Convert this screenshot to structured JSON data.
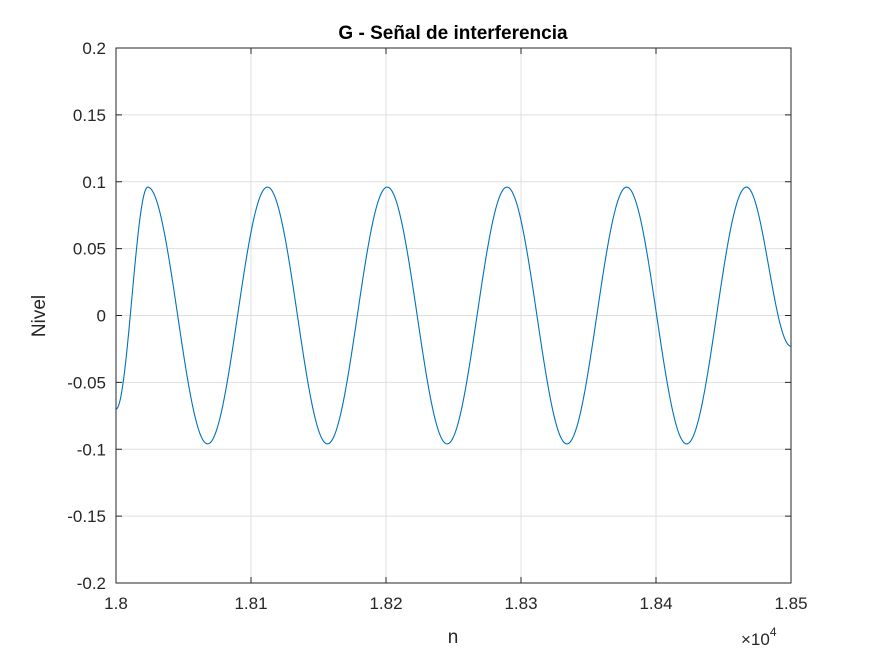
{
  "chart_data": {
    "type": "line",
    "title": "G - Señal de interferencia",
    "xlabel": "n",
    "ylabel": "Nivel",
    "xlim": [
      18000,
      18500
    ],
    "ylim": [
      -0.2,
      0.2
    ],
    "grid": true,
    "x_ticks": [
      18000,
      18100,
      18200,
      18300,
      18400,
      18500
    ],
    "x_tick_labels": [
      "1.8",
      "1.81",
      "1.82",
      "1.83",
      "1.84",
      "1.85"
    ],
    "x_exponent_base": "×10",
    "x_exponent_power": "4",
    "y_ticks": [
      -0.2,
      -0.15,
      -0.1,
      -0.05,
      0,
      0.05,
      0.1,
      0.15,
      0.2
    ],
    "y_tick_labels": [
      "-0.2",
      "-0.15",
      "-0.1",
      "-0.05",
      "0",
      "0.05",
      "0.1",
      "0.15",
      "0.2"
    ],
    "series": [
      {
        "amplitude": 0.096,
        "period": 88.7,
        "peaks_at": [
          18023.5,
          18112.2,
          18200.9,
          18289.6,
          18378.3,
          18467
        ],
        "troughs_at": [
          18067.9,
          18156.6,
          18245.3,
          18334,
          18422.7
        ],
        "x_start": 18000,
        "x_end": 18500,
        "y_start": -0.07,
        "y_end": -0.023,
        "color": "#0072BD"
      }
    ]
  }
}
